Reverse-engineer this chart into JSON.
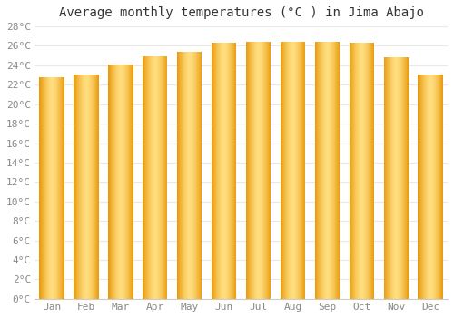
{
  "title": "Average monthly temperatures (°C ) in Jima Abajo",
  "months": [
    "Jan",
    "Feb",
    "Mar",
    "Apr",
    "May",
    "Jun",
    "Jul",
    "Aug",
    "Sep",
    "Oct",
    "Nov",
    "Dec"
  ],
  "values": [
    22.8,
    23.1,
    24.1,
    24.9,
    25.4,
    26.3,
    26.4,
    26.4,
    26.4,
    26.3,
    24.8,
    23.1
  ],
  "bar_color_center": "#FFD966",
  "bar_color_edge": "#F0A500",
  "bar_color_main": "#FFBB33",
  "ylim": [
    0,
    28
  ],
  "ytick_step": 2,
  "background_color": "#ffffff",
  "grid_color": "#e8e8e8",
  "title_fontsize": 10,
  "tick_fontsize": 8,
  "tick_color": "#888888"
}
